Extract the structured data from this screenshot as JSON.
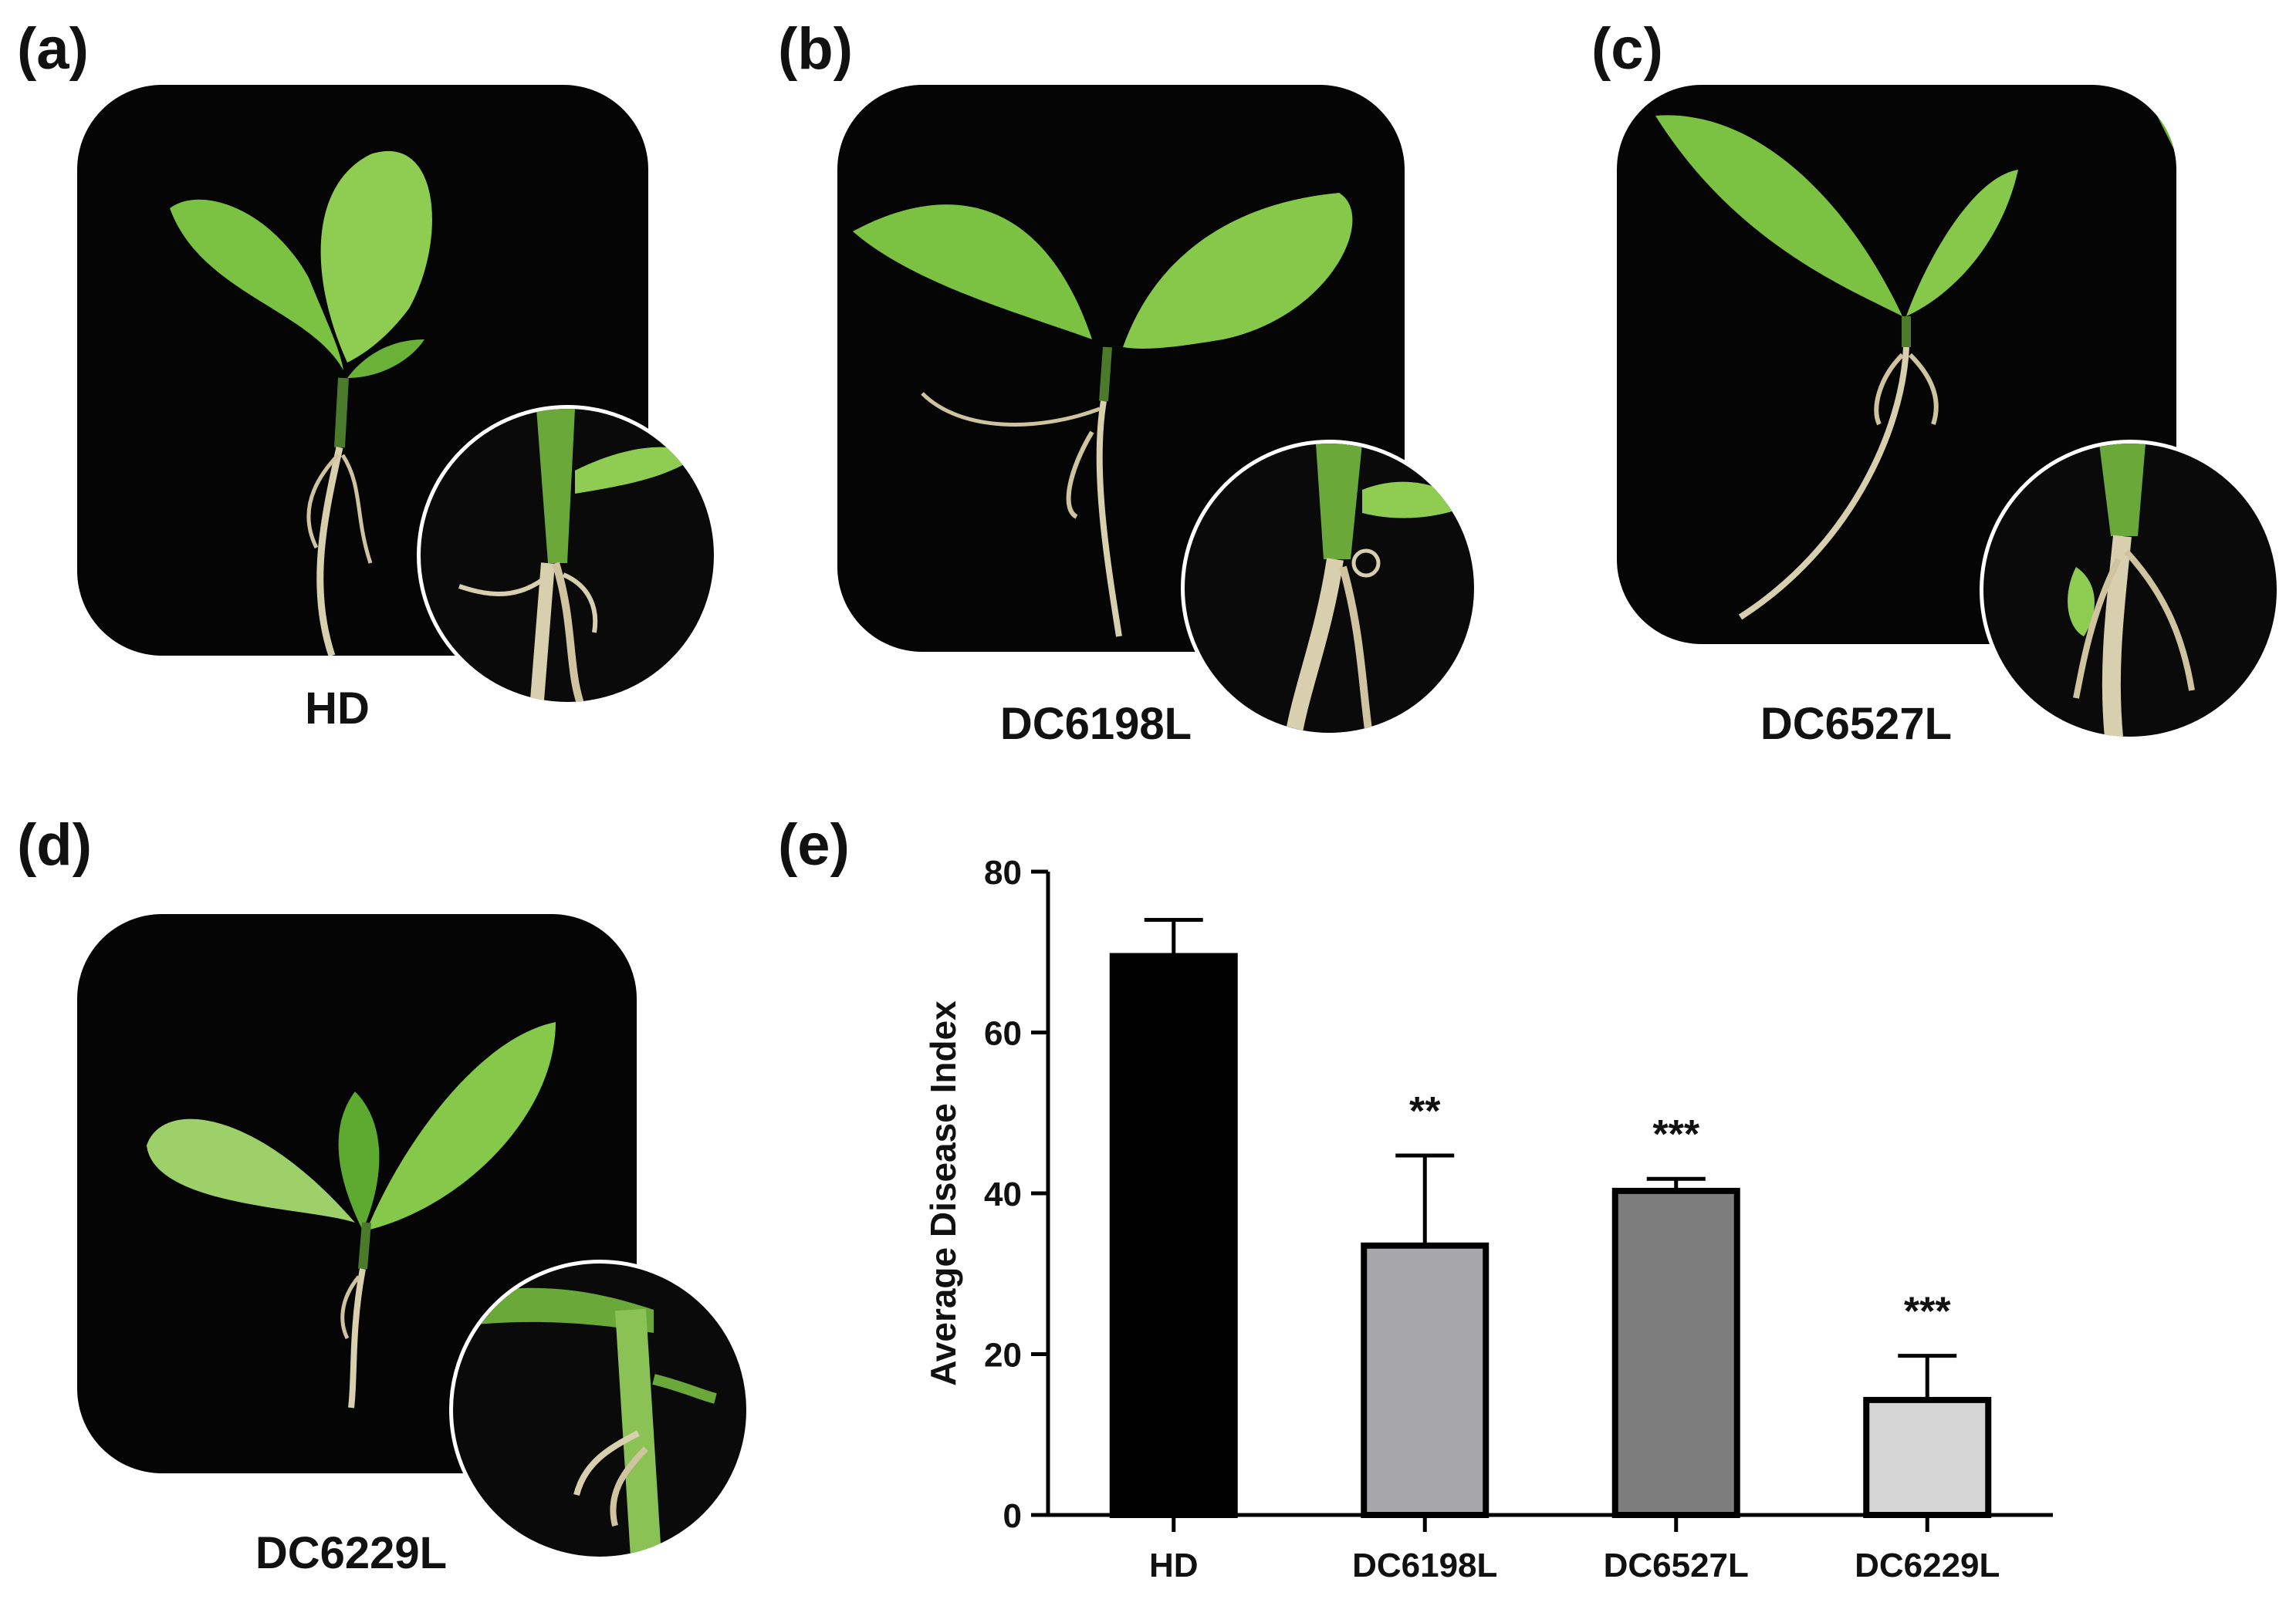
{
  "panels": [
    {
      "letter": "(a)",
      "label": "HD"
    },
    {
      "letter": "(b)",
      "label": "DC6198L"
    },
    {
      "letter": "(c)",
      "label": "DC6527L"
    },
    {
      "letter": "(d)",
      "label": "DC6229L"
    },
    {
      "letter": "(e)",
      "label": ""
    }
  ],
  "colors": {
    "photo_background": "#050505",
    "leaf": "#7cc242",
    "leaf_dark": "#4f9a2a",
    "root": "#d8cfae",
    "zoom_border": "#ffffff"
  },
  "chart_data": {
    "type": "bar",
    "title": "",
    "xlabel": "",
    "ylabel": "Average Disease Index",
    "ylim": [
      0,
      80
    ],
    "yticks": [
      0,
      20,
      40,
      60,
      80
    ],
    "grid": false,
    "categories": [
      "HD",
      "DC6198L",
      "DC6527L",
      "DC6229L"
    ],
    "values": [
      69.5,
      33.5,
      40.3,
      14.3
    ],
    "error": [
      4.5,
      11.2,
      1.5,
      5.5
    ],
    "significance": [
      "",
      "**",
      "***",
      "***"
    ],
    "bar_colors": [
      "#000000",
      "#a7a6ab",
      "#7d7d7d",
      "#d5d5d5"
    ]
  }
}
